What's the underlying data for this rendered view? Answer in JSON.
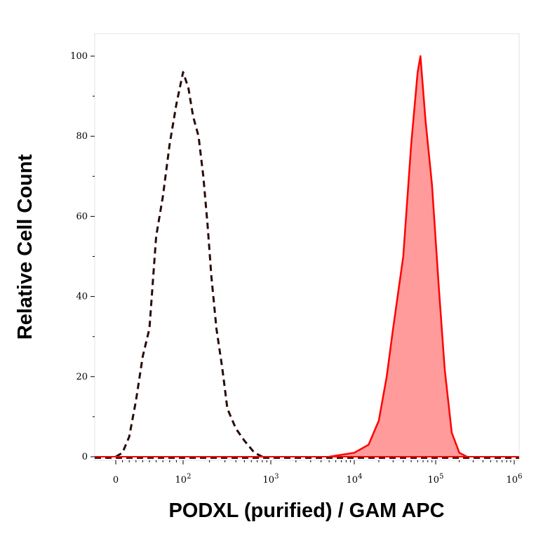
{
  "chart_data": {
    "type": "area",
    "title": "",
    "xlabel": "PODXL (purified) / GAM APC",
    "ylabel": "Relative Cell Count",
    "x_scale": "biexponential",
    "ylim": [
      0,
      100
    ],
    "yticks": [
      "0",
      "20",
      "40",
      "60",
      "80",
      "100"
    ],
    "xticks": [
      {
        "base": "0",
        "exp": ""
      },
      {
        "base": "10",
        "exp": "2"
      },
      {
        "base": "10",
        "exp": "3"
      },
      {
        "base": "10",
        "exp": "4"
      },
      {
        "base": "10",
        "exp": "5"
      },
      {
        "base": "10",
        "exp": "6"
      }
    ],
    "grid": false,
    "series": [
      {
        "style": "dashed",
        "color": "#2a0a0a",
        "fill": "none",
        "points": [
          [
            0,
            0
          ],
          [
            10,
            1
          ],
          [
            20,
            5
          ],
          [
            30,
            14
          ],
          [
            40,
            25
          ],
          [
            50,
            32
          ],
          [
            60,
            55
          ],
          [
            70,
            65
          ],
          [
            80,
            78
          ],
          [
            90,
            88
          ],
          [
            100,
            96
          ],
          [
            115,
            92
          ],
          [
            130,
            85
          ],
          [
            150,
            80
          ],
          [
            170,
            70
          ],
          [
            190,
            58
          ],
          [
            210,
            45
          ],
          [
            240,
            32
          ],
          [
            280,
            22
          ],
          [
            320,
            12
          ],
          [
            400,
            7
          ],
          [
            500,
            4
          ],
          [
            650,
            1
          ],
          [
            800,
            0
          ]
        ]
      },
      {
        "style": "solid",
        "color": "#ff0000",
        "fill": "#ff9b9b",
        "points": [
          [
            5000,
            0
          ],
          [
            10000,
            1
          ],
          [
            15000,
            3
          ],
          [
            20000,
            9
          ],
          [
            25000,
            20
          ],
          [
            30000,
            32
          ],
          [
            40000,
            50
          ],
          [
            50000,
            78
          ],
          [
            60000,
            96
          ],
          [
            65000,
            100
          ],
          [
            75000,
            84
          ],
          [
            90000,
            68
          ],
          [
            110000,
            42
          ],
          [
            130000,
            22
          ],
          [
            160000,
            6
          ],
          [
            200000,
            1
          ],
          [
            250000,
            0
          ]
        ]
      }
    ]
  }
}
